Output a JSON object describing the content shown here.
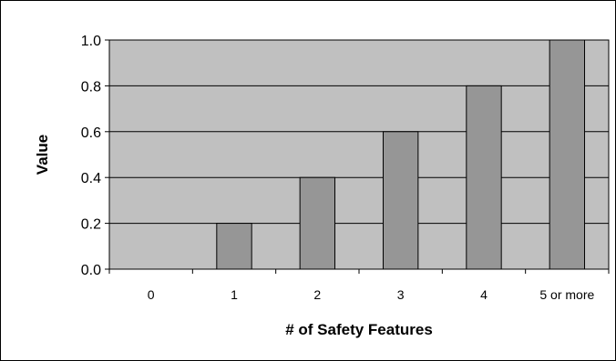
{
  "chart_data": {
    "type": "bar",
    "title": "",
    "xlabel": "# of Safety Features",
    "ylabel": "Value",
    "categories": [
      "0",
      "1",
      "2",
      "3",
      "4",
      "5 or more"
    ],
    "values": [
      0.0,
      0.2,
      0.4,
      0.6,
      0.8,
      1.0
    ],
    "ylim": [
      0,
      1.0
    ],
    "yticks": [
      "0.0",
      "0.2",
      "0.4",
      "0.6",
      "0.8",
      "1.0"
    ],
    "grid": true,
    "legend": "none",
    "colors": {
      "plot_background": "#c0c0c0",
      "bar_fill": "#969696",
      "bar_stroke": "#000000",
      "gridline": "#000000",
      "frame": "#000000"
    }
  }
}
